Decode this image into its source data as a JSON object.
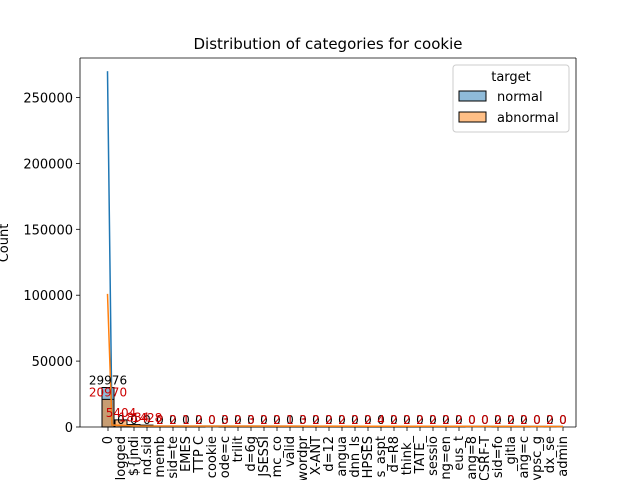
{
  "chart_data": {
    "type": "bar",
    "title": "Distribution of categories for cookie",
    "xlabel": "",
    "ylabel": "Count",
    "ylim": [
      0,
      280000
    ],
    "yticks": [
      0,
      50000,
      100000,
      150000,
      200000,
      250000
    ],
    "grid": false,
    "legend": {
      "title": "target",
      "placement": "top-right"
    },
    "categories": [
      "0",
      "logged",
      "${jndi",
      "nd.sid",
      "memb",
      "sid=te",
      "EMES",
      "TTP C",
      "cookie",
      "ode=c",
      "trilit",
      "d=6g",
      "JSESSI",
      "mc_co",
      "valid",
      "wordpr",
      "X-ANT",
      "d=12",
      "angua",
      "dnn_ls",
      "HPSES",
      "s_aspt",
      "d=R8",
      "think_",
      "TATE_",
      "sessio",
      "ng=en",
      "eus_t",
      "ang=8",
      "CSRF-T",
      "sid=fo",
      "_gitla",
      "ang=c",
      "vpsc_g",
      "dx_se",
      "admin"
    ],
    "series": [
      {
        "name": "normal",
        "color": "#1f77b4",
        "values": [
          29976,
          0,
          0,
          0,
          0,
          0,
          0,
          0,
          0,
          0,
          0,
          0,
          0,
          0,
          0,
          0,
          0,
          0,
          0,
          0,
          0,
          0,
          0,
          0,
          0,
          0,
          0,
          0,
          0,
          0,
          0,
          0,
          0,
          0,
          0,
          0
        ],
        "labels": [
          "29976",
          "0",
          "0",
          "0",
          "0",
          "0",
          "0",
          "0",
          "0",
          "0",
          "0",
          "0",
          "0",
          "0",
          "0",
          "0",
          "0",
          "0",
          "0",
          "0",
          "0",
          "0",
          "0",
          "0",
          "0",
          "0",
          "0",
          "0",
          "0",
          "0",
          "0",
          "0",
          "0",
          "0",
          "0",
          "0"
        ]
      },
      {
        "name": "abnormal",
        "color": "#ff7f0e",
        "values": [
          20970,
          5404,
          1834,
          1428,
          2,
          2,
          1,
          2,
          0,
          3,
          2,
          3,
          2,
          2,
          1,
          3,
          2,
          2,
          2,
          2,
          2,
          4,
          2,
          2,
          2,
          2,
          2,
          2,
          0,
          0,
          2,
          2,
          2,
          0,
          2,
          0
        ],
        "labels": [
          "20970",
          "5404",
          "1834",
          "1428",
          "2",
          "2",
          "1",
          "2",
          "0",
          "3",
          "2",
          "3",
          "2",
          "2",
          "1",
          "3",
          "2",
          "2",
          "2",
          "2",
          "2",
          "4",
          "2",
          "2",
          "2",
          "2",
          "2",
          "2",
          "0",
          "0",
          "2",
          "2",
          "2",
          "0",
          "2",
          "0"
        ]
      }
    ],
    "kde_peaks": {
      "normal": 270000,
      "abnormal": 101000
    }
  }
}
